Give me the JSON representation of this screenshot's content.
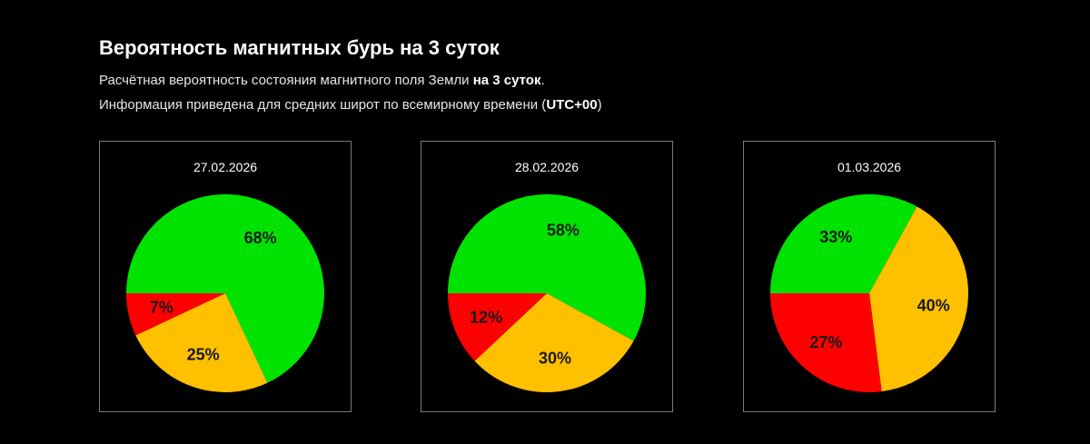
{
  "header": {
    "title": "Вероятность магнитных бурь на 3 суток",
    "line1_prefix": "Расчётная вероятность состояния магнитного поля Земли ",
    "line1_bold": "на 3 суток",
    "line1_suffix": ".",
    "line2_prefix": "Информация приведена для средних широт по всемирному времени (",
    "line2_bold": "UTC+00",
    "line2_suffix": ")"
  },
  "colors": {
    "green": "#00e300",
    "red": "#ff0000",
    "amber": "#ffc000",
    "background": "#000000",
    "card_border": "#7a7a7a"
  },
  "chart_data": [
    {
      "type": "pie",
      "title": "27.02.2026",
      "slices": [
        {
          "value": 68,
          "label": "68%",
          "color": "#00e300"
        },
        {
          "value": 25,
          "label": "25%",
          "color": "#ffc000"
        },
        {
          "value": 7,
          "label": "7%",
          "color": "#ff0000"
        }
      ]
    },
    {
      "type": "pie",
      "title": "28.02.2026",
      "slices": [
        {
          "value": 58,
          "label": "58%",
          "color": "#00e300"
        },
        {
          "value": 30,
          "label": "30%",
          "color": "#ffc000"
        },
        {
          "value": 12,
          "label": "12%",
          "color": "#ff0000"
        }
      ]
    },
    {
      "type": "pie",
      "title": "01.03.2026",
      "slices": [
        {
          "value": 33,
          "label": "33%",
          "color": "#00e300"
        },
        {
          "value": 40,
          "label": "40%",
          "color": "#ffc000"
        },
        {
          "value": 27,
          "label": "27%",
          "color": "#ff0000"
        }
      ]
    }
  ]
}
